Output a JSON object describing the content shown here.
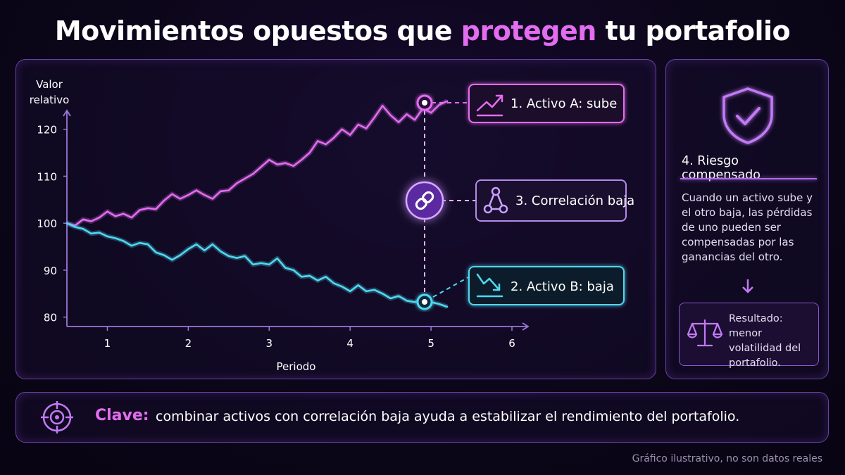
{
  "title": {
    "before": "Movimientos opuestos que ",
    "highlight": "protegen",
    "after": " tu portafolio"
  },
  "colors": {
    "asset_a": "#e36cf0",
    "asset_b": "#4fd8f0",
    "accent": "#a86cf0",
    "border": "#6b3fa8"
  },
  "chart_data": {
    "type": "line",
    "ylabel": "Valor relativo",
    "xlabel": "Periodo",
    "xlim": [
      0.5,
      6.2
    ],
    "ylim": [
      78,
      124
    ],
    "xticks": [
      1,
      2,
      3,
      4,
      5,
      6
    ],
    "yticks": [
      80,
      90,
      100,
      110,
      120
    ],
    "series": [
      {
        "name": "1. Activo A: sube",
        "x": [
          0.5,
          0.6,
          0.7,
          0.8,
          0.9,
          1.0,
          1.1,
          1.2,
          1.3,
          1.4,
          1.5,
          1.6,
          1.7,
          1.8,
          1.9,
          2.0,
          2.1,
          2.2,
          2.3,
          2.4,
          2.5,
          2.6,
          2.7,
          2.8,
          2.9,
          3.0,
          3.1,
          3.2,
          3.3,
          3.4,
          3.5,
          3.6,
          3.7,
          3.8,
          3.9,
          4.0,
          4.1,
          4.2,
          4.3,
          4.4,
          4.5,
          4.6,
          4.7,
          4.8,
          4.9,
          5.0,
          5.1,
          5.2
        ],
        "values": [
          100,
          99.5,
          100.8,
          100.4,
          101.2,
          102.5,
          101.5,
          102,
          101.2,
          102.8,
          103.2,
          103,
          104.8,
          106.2,
          105.2,
          106,
          107,
          106,
          105.2,
          106.8,
          107,
          108.5,
          109.5,
          110.5,
          112,
          113.5,
          112.5,
          112.8,
          112.2,
          113.5,
          115,
          117.5,
          116.8,
          118.2,
          120,
          118.8,
          121,
          120.2,
          122.5,
          125,
          123,
          121.5,
          123.2,
          122,
          124.5,
          123.5,
          125.2,
          126
        ]
      },
      {
        "name": "2. Activo B: baja",
        "x": [
          0.5,
          0.6,
          0.7,
          0.8,
          0.9,
          1.0,
          1.1,
          1.2,
          1.3,
          1.4,
          1.5,
          1.6,
          1.7,
          1.8,
          1.9,
          2.0,
          2.1,
          2.2,
          2.3,
          2.4,
          2.5,
          2.6,
          2.7,
          2.8,
          2.9,
          3.0,
          3.1,
          3.2,
          3.3,
          3.4,
          3.5,
          3.6,
          3.7,
          3.8,
          3.9,
          4.0,
          4.1,
          4.2,
          4.3,
          4.4,
          4.5,
          4.6,
          4.7,
          4.8,
          4.9,
          5.0,
          5.1,
          5.2
        ],
        "values": [
          100,
          99.2,
          98.8,
          97.8,
          98,
          97.2,
          96.8,
          96.2,
          95.2,
          95.8,
          95.5,
          93.8,
          93.2,
          92.2,
          93.2,
          94.5,
          95.5,
          94.2,
          95.5,
          94,
          93,
          92.6,
          93,
          91.2,
          91.5,
          91.2,
          92.5,
          90.5,
          90,
          88.6,
          88.8,
          87.8,
          88.6,
          87.2,
          86.5,
          85.5,
          86.8,
          85.5,
          85.8,
          85,
          84,
          84.5,
          83.5,
          83.2,
          83.8,
          83.2,
          82.8,
          82.2
        ]
      }
    ],
    "annotations": [
      "3. Correlación baja"
    ]
  },
  "labels": {
    "asset_a": "1. Activo A: sube",
    "asset_b": "2. Activo B: baja",
    "correlation": "3. Correlación baja"
  },
  "risk": {
    "title": "4. Riesgo compensado",
    "description": "Cuando un activo sube y el otro baja, las pérdidas de uno pueden ser compensadas por las ganancias del otro.",
    "result_label": "Resultado: menor volatilidad del portafolio.",
    "icon": "shield-check-icon",
    "result_icon": "scale-icon"
  },
  "key": {
    "label": "Clave:",
    "text": "combinar activos con correlación baja ayuda a estabilizar el rendimiento del portafolio.",
    "icon": "target-icon"
  },
  "footnote": "Gráfico ilustrativo, no son datos reales"
}
